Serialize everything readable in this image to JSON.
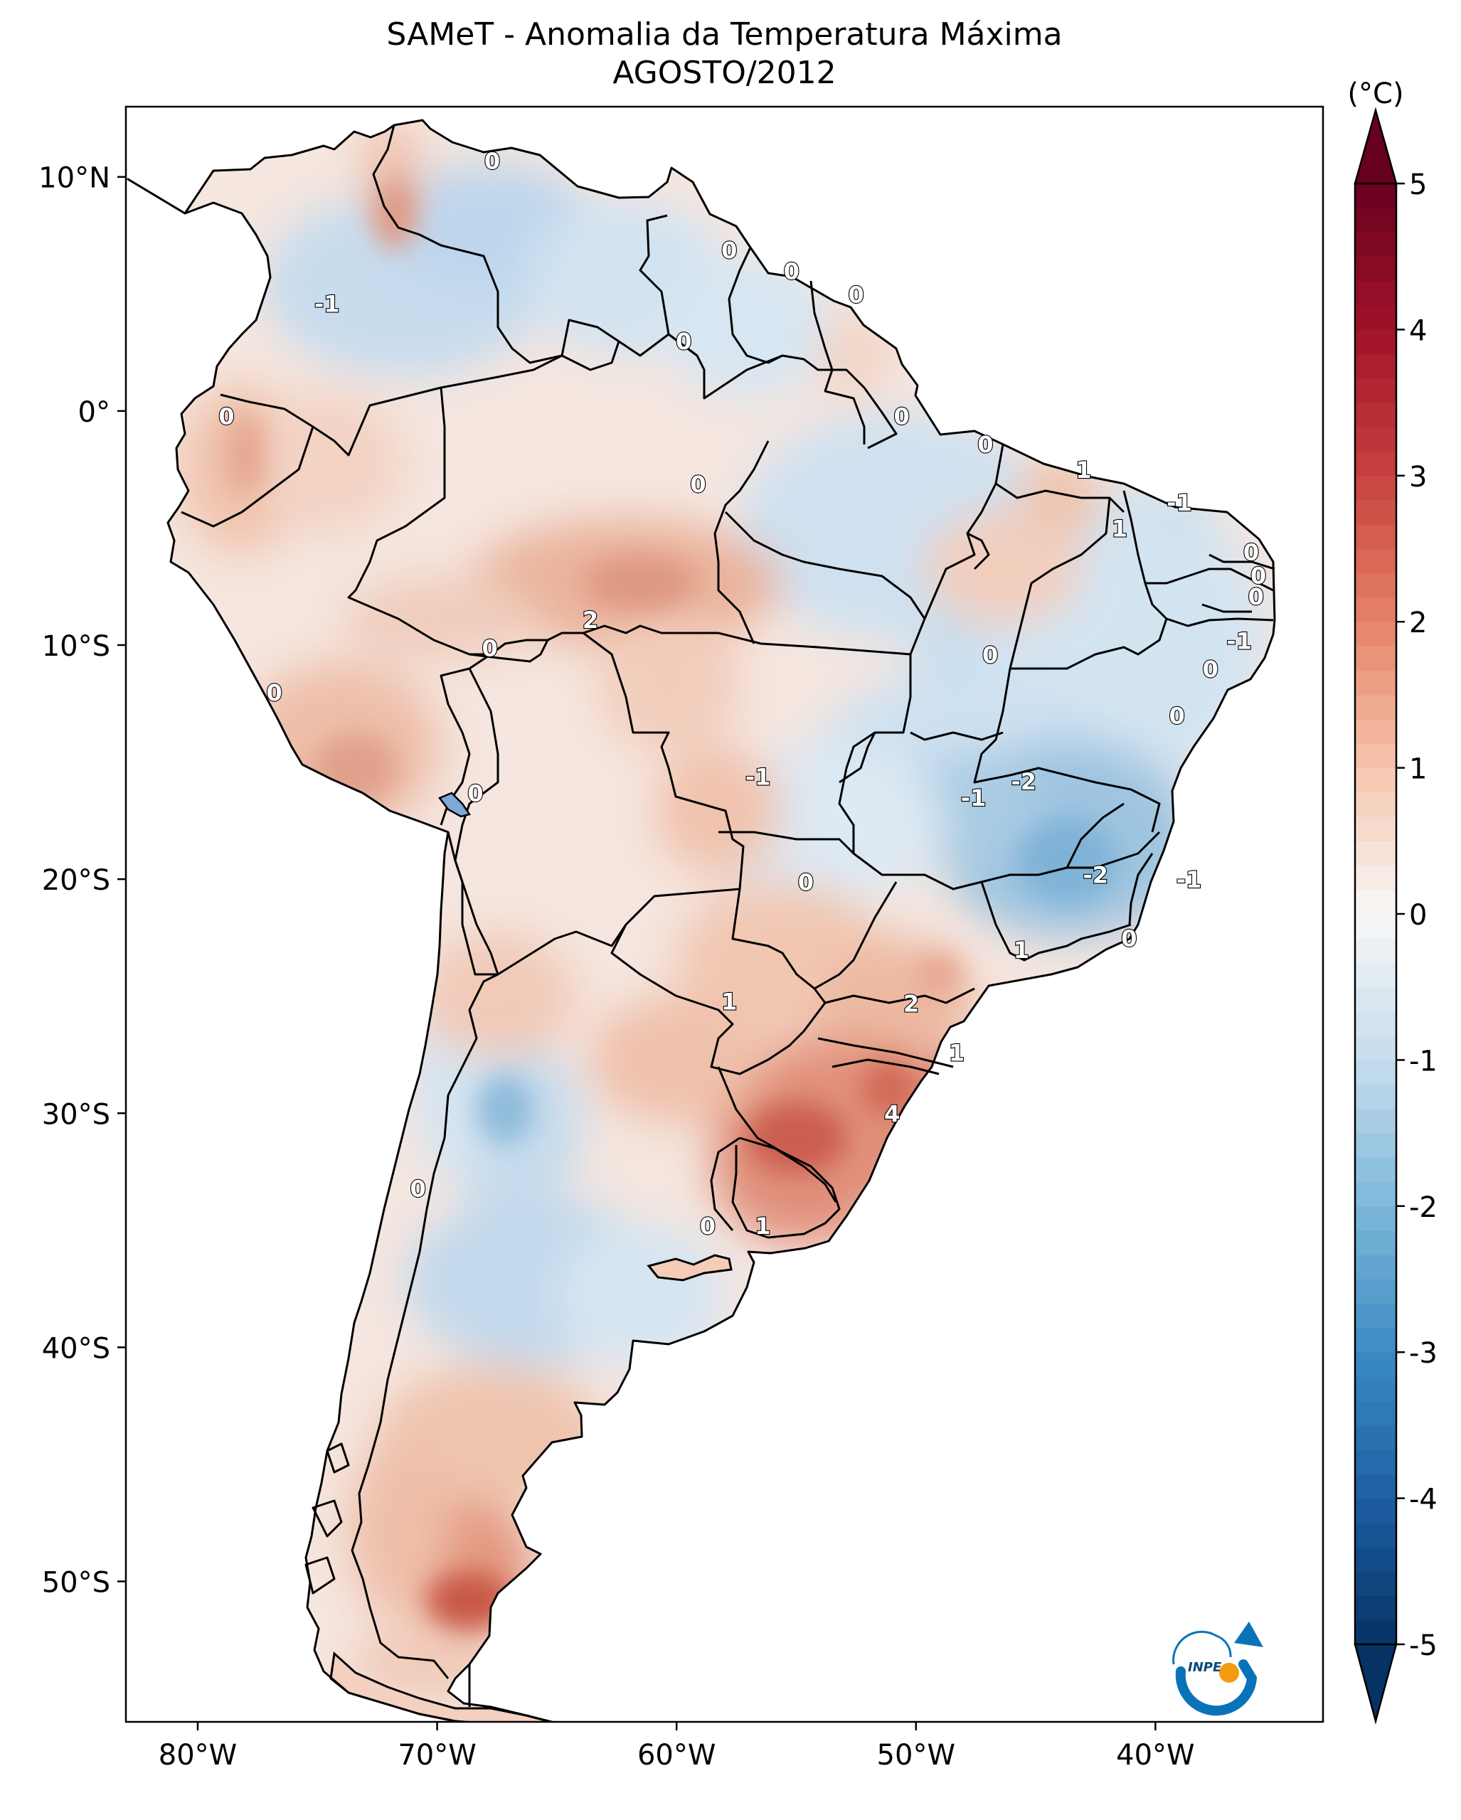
{
  "title": {
    "line1": "SAMeT - Anomalia da Temperatura Máxima",
    "line2": "AGOSTO/2012"
  },
  "map": {
    "lat_ticks": [
      "10°N",
      "0°",
      "10°S",
      "20°S",
      "30°S",
      "40°S",
      "50°S"
    ],
    "lon_ticks": [
      "80°W",
      "70°W",
      "60°W",
      "50°W",
      "40°W"
    ],
    "extent": {
      "lon": [
        -83,
        -33
      ],
      "lat": [
        -56,
        13
      ]
    },
    "contour_labels": [
      {
        "text": "0",
        "lon": -67.7,
        "lat": 10.7
      },
      {
        "text": "0",
        "lon": -57.8,
        "lat": 6.9
      },
      {
        "text": "0",
        "lon": -55.2,
        "lat": 6.0
      },
      {
        "text": "0",
        "lon": -52.5,
        "lat": 5.0
      },
      {
        "text": "0",
        "lon": -59.7,
        "lat": 3.0
      },
      {
        "text": "-1",
        "lon": -74.6,
        "lat": 4.6
      },
      {
        "text": "0",
        "lon": -78.8,
        "lat": -0.2
      },
      {
        "text": "0",
        "lon": -50.6,
        "lat": -0.2
      },
      {
        "text": "0",
        "lon": -47.1,
        "lat": -1.4
      },
      {
        "text": "0",
        "lon": -59.1,
        "lat": -3.1
      },
      {
        "text": "1",
        "lon": -43.0,
        "lat": -2.5
      },
      {
        "text": "-1",
        "lon": -39.0,
        "lat": -3.9
      },
      {
        "text": "1",
        "lon": -41.5,
        "lat": -5.0
      },
      {
        "text": "0",
        "lon": -36.0,
        "lat": -6.0
      },
      {
        "text": "0",
        "lon": -35.7,
        "lat": -7.0
      },
      {
        "text": "0",
        "lon": -35.8,
        "lat": -7.9
      },
      {
        "text": "-1",
        "lon": -36.5,
        "lat": -9.8
      },
      {
        "text": "0",
        "lon": -37.7,
        "lat": -11.0
      },
      {
        "text": "2",
        "lon": -63.6,
        "lat": -8.9
      },
      {
        "text": "0",
        "lon": -67.8,
        "lat": -10.1
      },
      {
        "text": "0",
        "lon": -46.9,
        "lat": -10.4
      },
      {
        "text": "0",
        "lon": -76.8,
        "lat": -12.0
      },
      {
        "text": "0",
        "lon": -39.1,
        "lat": -13.0
      },
      {
        "text": "-1",
        "lon": -56.6,
        "lat": -15.6
      },
      {
        "text": "-2",
        "lon": -45.5,
        "lat": -15.8
      },
      {
        "text": "-1",
        "lon": -47.6,
        "lat": -16.5
      },
      {
        "text": "0",
        "lon": -68.4,
        "lat": -16.3
      },
      {
        "text": "-2",
        "lon": -42.5,
        "lat": -19.8
      },
      {
        "text": "-1",
        "lon": -38.6,
        "lat": -20.0
      },
      {
        "text": "0",
        "lon": -54.6,
        "lat": -20.1
      },
      {
        "text": "1",
        "lon": -45.6,
        "lat": -23.0
      },
      {
        "text": "0",
        "lon": -41.1,
        "lat": -22.5
      },
      {
        "text": "1",
        "lon": -57.8,
        "lat": -25.2
      },
      {
        "text": "2",
        "lon": -50.2,
        "lat": -25.3
      },
      {
        "text": "1",
        "lon": -48.3,
        "lat": -27.4
      },
      {
        "text": "4",
        "lon": -51.0,
        "lat": -30.0
      },
      {
        "text": "0",
        "lon": -70.8,
        "lat": -33.2
      },
      {
        "text": "0",
        "lon": -58.7,
        "lat": -34.8
      },
      {
        "text": "1",
        "lon": -56.4,
        "lat": -34.8
      }
    ]
  },
  "colorbar": {
    "unit": "(°C)",
    "ticks": [
      "5",
      "4",
      "3",
      "2",
      "1",
      "0",
      "-1",
      "-2",
      "-3",
      "-4",
      "-5"
    ],
    "range": [
      -5,
      5
    ]
  },
  "logo": {
    "text": "INPE"
  },
  "colors": {
    "positive_anomaly": "#b2182b",
    "negative_anomaly": "#2166ac",
    "neutral": "#f7f7f7",
    "land_base": "#f6e2d8",
    "borders": "#000000",
    "logo_blue": "#0a73b8",
    "logo_orange": "#f39c12"
  }
}
